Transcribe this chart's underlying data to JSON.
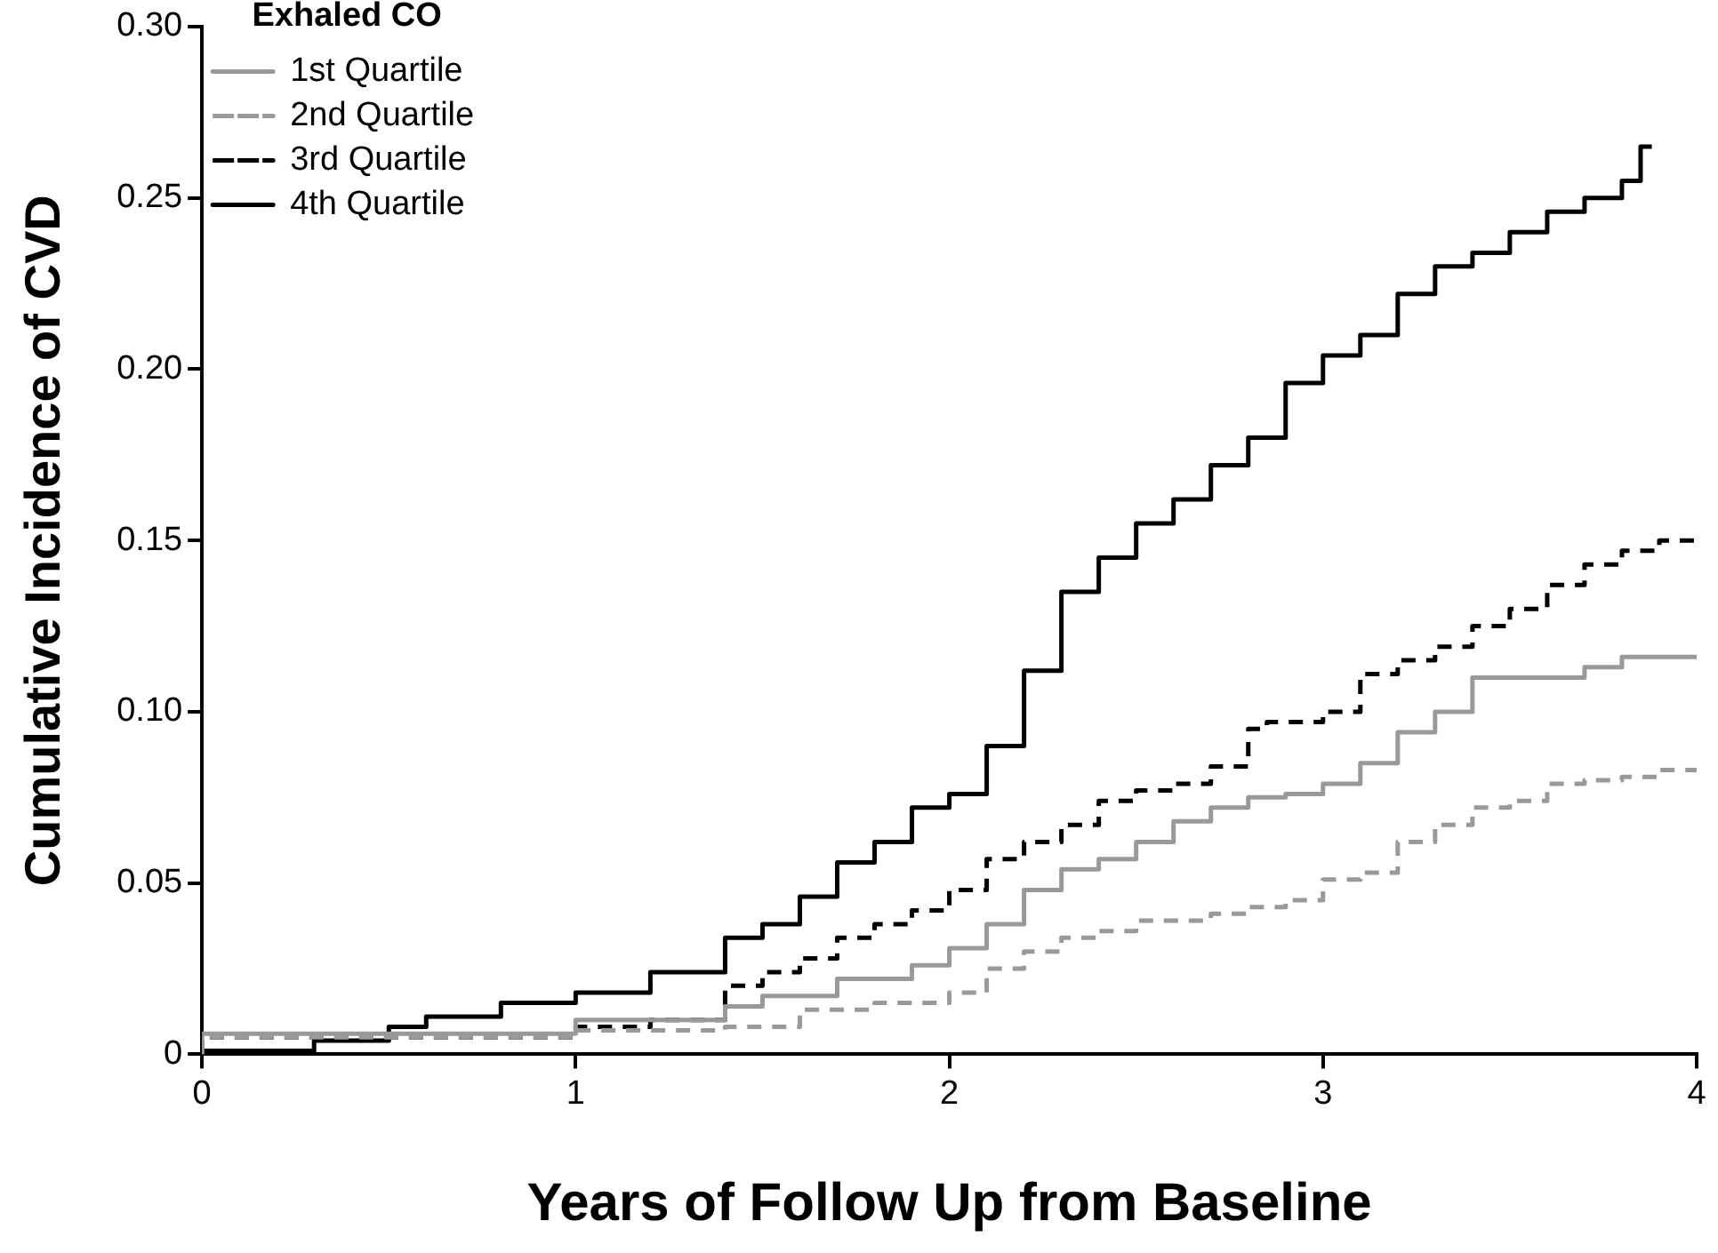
{
  "chart_data": {
    "type": "step",
    "xlabel": "Years of Follow Up from Baseline",
    "ylabel": "Cumulative Incidence of CVD",
    "legend_title": "Exhaled CO",
    "legend": "top left",
    "grid": false,
    "marker": "none",
    "xlim": [
      0,
      4
    ],
    "xticks": [
      0,
      1,
      2,
      3,
      4
    ],
    "ylim": [
      0,
      0.3
    ],
    "yticks": [
      0,
      0.05,
      {
        "value": 0.1,
        "label": "0.10"
      },
      0.15,
      {
        "value": 0.2,
        "label": "0.20"
      },
      0.25,
      {
        "value": 0.3,
        "label": "0.30"
      }
    ],
    "series": [
      {
        "name": "1st Quartile",
        "color": "#999999",
        "line_style": "solid",
        "x": [
          0,
          1,
          1.4,
          1.5,
          1.7,
          1.9,
          2,
          2.1,
          2.2,
          2.3,
          2.4,
          2.5,
          2.6,
          2.7,
          2.8,
          2.9,
          3,
          3.1,
          3.2,
          3.3,
          3.4,
          3.5,
          3.7,
          3.8,
          3.9,
          4
        ],
        "values": [
          0,
          0.006,
          0.01,
          0.014,
          0.017,
          0.022,
          0.026,
          0.031,
          0.038,
          0.048,
          0.054,
          0.057,
          0.062,
          0.068,
          0.072,
          0.075,
          0.076,
          0.079,
          0.085,
          0.094,
          0.1,
          0.11,
          0.11,
          0.113,
          0.116,
          0.116
        ]
      },
      {
        "name": "2nd Quartile",
        "color": "#999999",
        "line_style": "dashed",
        "x": [
          0,
          1,
          1.4,
          1.6,
          1.8,
          2,
          2.1,
          2.2,
          2.3,
          2.4,
          2.5,
          2.7,
          2.8,
          2.9,
          3,
          3.1,
          3.2,
          3.3,
          3.4,
          3.5,
          3.6,
          3.7,
          3.8,
          3.9,
          4
        ],
        "values": [
          0,
          0.005,
          0.007,
          0.008,
          0.013,
          0.015,
          0.018,
          0.025,
          0.03,
          0.034,
          0.036,
          0.039,
          0.041,
          0.043,
          0.045,
          0.051,
          0.053,
          0.062,
          0.067,
          0.072,
          0.074,
          0.079,
          0.08,
          0.081,
          0.083
        ]
      },
      {
        "name": "3rd Quartile",
        "color": "#000000",
        "line_style": "dashed",
        "x": [
          0,
          1,
          1.2,
          1.4,
          1.5,
          1.6,
          1.7,
          1.8,
          1.9,
          2,
          2.1,
          2.2,
          2.3,
          2.4,
          2.5,
          2.6,
          2.7,
          2.8,
          2.85,
          3,
          3.1,
          3.2,
          3.3,
          3.4,
          3.5,
          3.6,
          3.7,
          3.8,
          3.9,
          4
        ],
        "values": [
          0,
          0.005,
          0.008,
          0.01,
          0.02,
          0.024,
          0.028,
          0.034,
          0.038,
          0.042,
          0.048,
          0.057,
          0.062,
          0.067,
          0.074,
          0.077,
          0.079,
          0.084,
          0.095,
          0.097,
          0.1,
          0.111,
          0.115,
          0.119,
          0.125,
          0.13,
          0.137,
          0.143,
          0.147,
          0.15
        ]
      },
      {
        "name": "4th Quartile",
        "color": "#000000",
        "line_style": "solid",
        "x": [
          0,
          0.3,
          0.5,
          0.6,
          0.8,
          1,
          1.2,
          1.4,
          1.5,
          1.6,
          1.7,
          1.8,
          1.9,
          2,
          2.1,
          2.2,
          2.3,
          2.4,
          2.5,
          2.6,
          2.7,
          2.8,
          2.9,
          3,
          3.1,
          3.2,
          3.3,
          3.4,
          3.5,
          3.6,
          3.7,
          3.8,
          3.85,
          3.88
        ],
        "values": [
          0,
          0.001,
          0.004,
          0.008,
          0.011,
          0.015,
          0.018,
          0.024,
          0.034,
          0.038,
          0.046,
          0.056,
          0.062,
          0.072,
          0.076,
          0.09,
          0.112,
          0.135,
          0.145,
          0.155,
          0.162,
          0.172,
          0.18,
          0.196,
          0.204,
          0.21,
          0.222,
          0.23,
          0.234,
          0.24,
          0.246,
          0.25,
          0.255,
          0.265
        ]
      }
    ]
  }
}
